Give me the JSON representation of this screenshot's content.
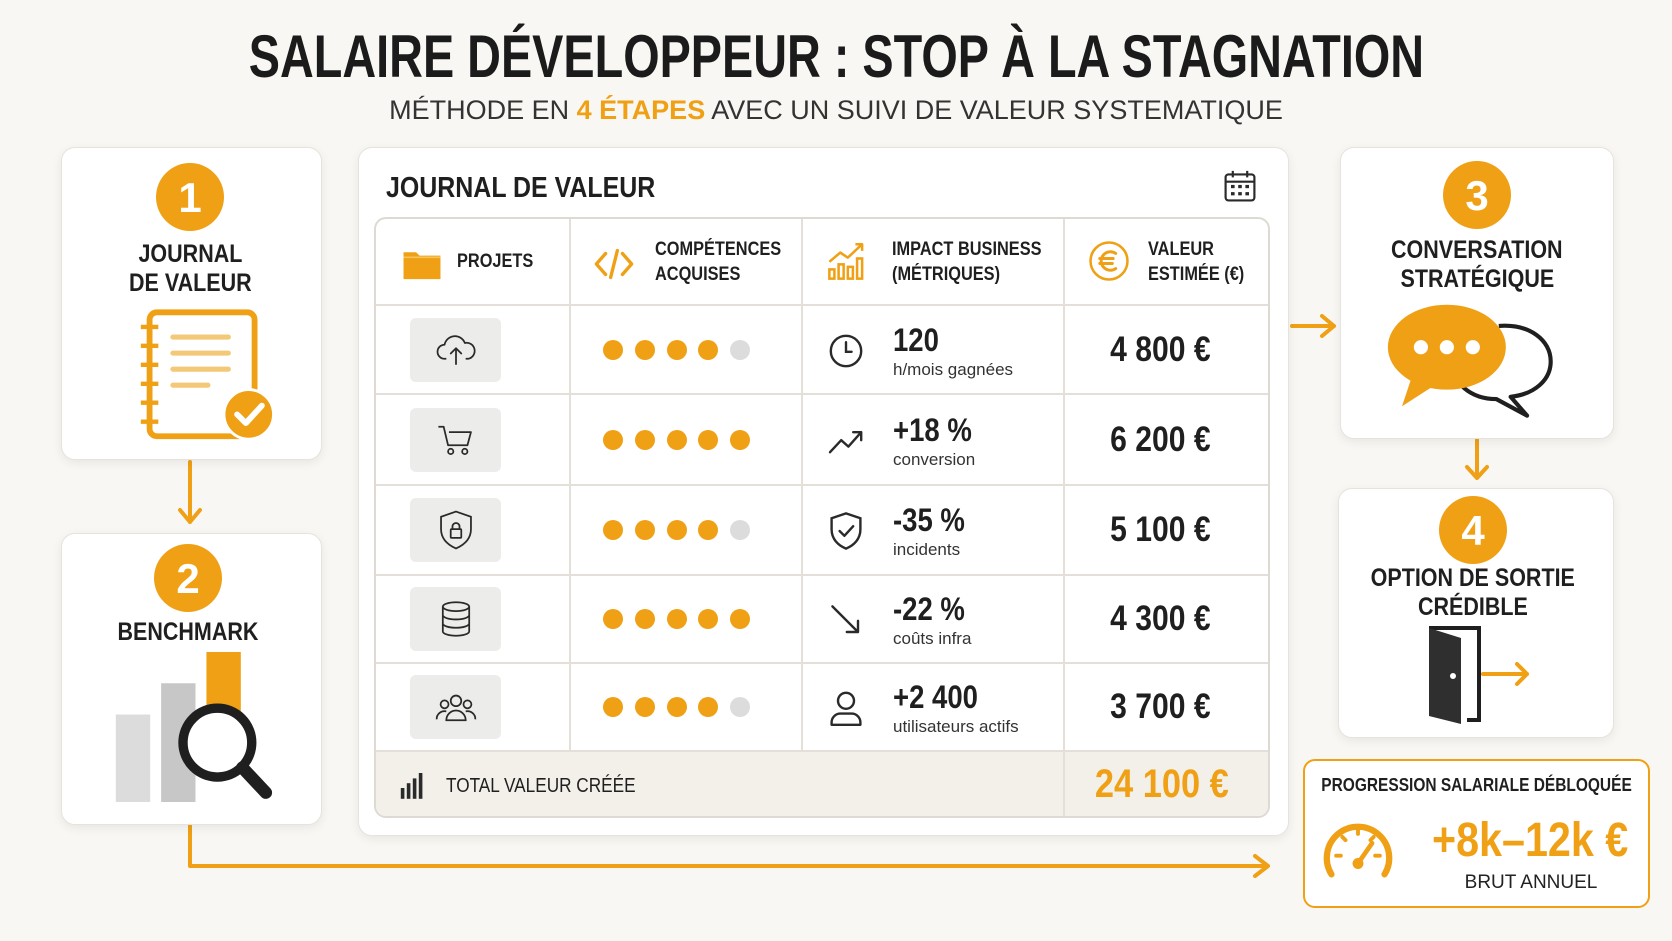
{
  "header": {
    "title": "SALAIRE DÉVELOPPEUR : STOP À LA STAGNATION",
    "subtitle": {
      "before": "MÉTHODE EN ",
      "highlight": "4 ÉTAPES",
      "after": " AVEC UN SUIVI DE VALEUR SYSTEMATIQUE"
    }
  },
  "steps": [
    {
      "number": "1",
      "label": [
        "JOURNAL",
        "DE VALEUR"
      ]
    },
    {
      "number": "2",
      "label": [
        "BENCHMARK"
      ]
    },
    {
      "number": "3",
      "label": [
        "CONVERSATION",
        "STRATÉGIQUE"
      ]
    },
    {
      "number": "4",
      "label": [
        "OPTION DE SORTIE",
        "CRÉDIBLE"
      ]
    }
  ],
  "journal": {
    "title": "JOURNAL DE VALEUR",
    "columns": [
      [
        "PROJETS"
      ],
      [
        "COMPÉTENCES",
        "ACQUISES"
      ],
      [
        "IMPACT BUSINESS",
        "(MÉTRIQUES)"
      ],
      [
        "VALEUR",
        "ESTIMÉE (€)"
      ]
    ],
    "skills_scale": 5,
    "rows": [
      {
        "skills": 4,
        "metric": "120",
        "metric_label": "h/mois gagnées",
        "value": "4 800 €"
      },
      {
        "skills": 5,
        "metric": "+18 %",
        "metric_label": "conversion",
        "value": "6 200 €"
      },
      {
        "skills": 4,
        "metric": "-35 %",
        "metric_label": "incidents",
        "value": "5 100 €"
      },
      {
        "skills": 5,
        "metric": "-22 %",
        "metric_label": "coûts infra",
        "value": "4 300 €"
      },
      {
        "skills": 4,
        "metric": "+2 400",
        "metric_label": "utilisateurs actifs",
        "value": "3 700 €"
      }
    ],
    "total_label": "TOTAL VALEUR CRÉÉE",
    "total": "24 100 €"
  },
  "progression": {
    "title": "PROGRESSION SALARIALE DÉBLOQUÉE",
    "value": "+8k–12k €",
    "label": "BRUT ANNUEL"
  }
}
